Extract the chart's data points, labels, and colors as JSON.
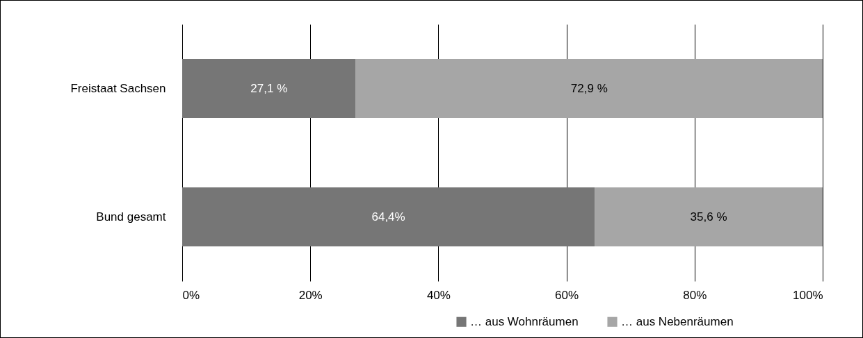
{
  "chart_data": {
    "type": "bar",
    "orientation": "horizontal",
    "stacked": true,
    "categories": [
      "Freistaat Sachsen",
      "Bund gesamt"
    ],
    "series": [
      {
        "name": "… aus Wohnräumen",
        "color": "#767676",
        "values": [
          27.1,
          64.4
        ],
        "value_labels": [
          "27,1 %",
          "64,4%"
        ]
      },
      {
        "name": "… aus Nebenräumen",
        "color": "#a6a6a6",
        "values": [
          72.9,
          35.6
        ],
        "value_labels": [
          "72,9 %",
          "35,6 %"
        ]
      }
    ],
    "xlim": [
      0,
      100
    ],
    "xticks": [
      {
        "value": 0,
        "label": "0%"
      },
      {
        "value": 20,
        "label": "20%"
      },
      {
        "value": 40,
        "label": "40%"
      },
      {
        "value": 60,
        "label": "60%"
      },
      {
        "value": 80,
        "label": "80%"
      },
      {
        "value": 100,
        "label": "100%"
      }
    ],
    "grid": "x",
    "legend": "bottom right"
  }
}
